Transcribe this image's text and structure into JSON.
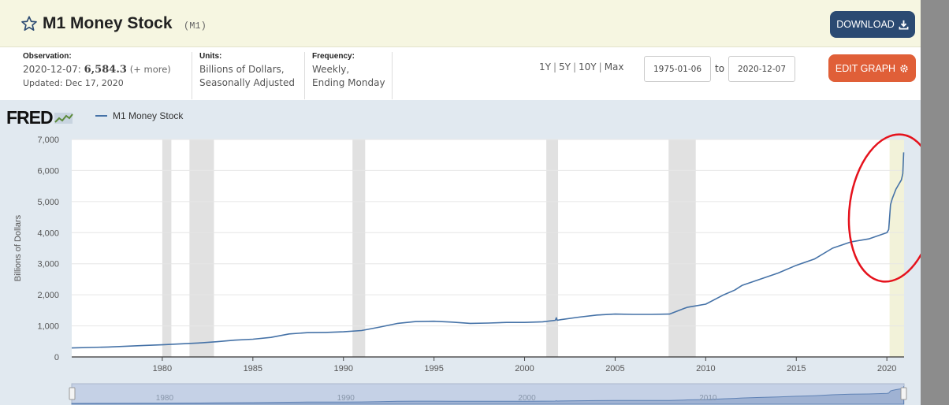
{
  "header": {
    "title": "M1 Money Stock",
    "series_id": "(M1)",
    "download_label": "DOWNLOAD"
  },
  "observation": {
    "label": "Observation:",
    "date": "2020-12-07:",
    "value": "6,584.3",
    "more": "(+ more)",
    "updated": "Updated: Dec 17, 2020"
  },
  "units": {
    "label": "Units:",
    "line1": "Billions of Dollars,",
    "line2": "Seasonally Adjusted"
  },
  "frequency": {
    "label": "Frequency:",
    "line1": "Weekly,",
    "line2": "Ending Monday"
  },
  "range": {
    "links": [
      "1Y",
      "5Y",
      "10Y",
      "Max"
    ],
    "start": "1975-01-06",
    "to_label": "to",
    "end": "2020-12-07"
  },
  "edit_graph_label": "EDIT GRAPH",
  "logo": "FRED",
  "colors": {
    "line": "#4572a7",
    "recession": "#e1e1e1",
    "highlight": "#f2f2d9",
    "annotation_ring": "#e5121c",
    "download_btn": "#2b4a72",
    "edit_btn": "#e05f38"
  },
  "chart_data": {
    "type": "line",
    "ylabel": "Billions of Dollars",
    "xlim": [
      1975.0,
      2020.95
    ],
    "ylim": [
      0,
      7000
    ],
    "yticks": [
      0,
      1000,
      2000,
      3000,
      4000,
      5000,
      6000,
      7000
    ],
    "ytick_labels": [
      "0",
      "1,000",
      "2,000",
      "3,000",
      "4,000",
      "5,000",
      "6,000",
      "7,000"
    ],
    "xticks": [
      1980,
      1985,
      1990,
      1995,
      2000,
      2005,
      2010,
      2015,
      2020
    ],
    "xtick_labels": [
      "1980",
      "1985",
      "1990",
      "1995",
      "2000",
      "2005",
      "2010",
      "2015",
      "2020"
    ],
    "grid": true,
    "legend": "top-left",
    "series": [
      {
        "name": "M1 Money Stock",
        "x": [
          1975.0,
          1977.0,
          1979.0,
          1980.0,
          1981.0,
          1982.0,
          1983.0,
          1984.0,
          1985.0,
          1986.0,
          1987.0,
          1988.0,
          1989.0,
          1990.0,
          1991.0,
          1992.0,
          1993.0,
          1994.0,
          1995.0,
          1996.0,
          1997.0,
          1998.0,
          1999.0,
          2000.0,
          2001.0,
          2001.7,
          2001.75,
          2001.8,
          2002.0,
          2003.0,
          2004.0,
          2005.0,
          2006.0,
          2007.0,
          2008.0,
          2008.8,
          2009.0,
          2010.0,
          2011.0,
          2011.6,
          2012.0,
          2013.0,
          2014.0,
          2015.0,
          2016.0,
          2017.0,
          2018.0,
          2019.0,
          2020.0,
          2020.1,
          2020.2,
          2020.3,
          2020.4,
          2020.5,
          2020.6,
          2020.7,
          2020.8,
          2020.88,
          2020.93
        ],
        "y": [
          290,
          320,
          370,
          390,
          420,
          450,
          490,
          540,
          570,
          630,
          740,
          780,
          790,
          810,
          850,
          960,
          1080,
          1140,
          1150,
          1120,
          1080,
          1090,
          1110,
          1110,
          1130,
          1180,
          1260,
          1180,
          1200,
          1280,
          1350,
          1380,
          1370,
          1370,
          1380,
          1560,
          1600,
          1700,
          2000,
          2150,
          2300,
          2500,
          2700,
          2950,
          3150,
          3500,
          3700,
          3800,
          4000,
          4100,
          4900,
          5100,
          5250,
          5400,
          5500,
          5600,
          5700,
          5900,
          6584
        ]
      }
    ],
    "recessions": [
      [
        1980.0,
        1980.5
      ],
      [
        1981.5,
        1982.85
      ],
      [
        1990.5,
        1991.2
      ],
      [
        2001.2,
        2001.85
      ],
      [
        2007.95,
        2009.45
      ]
    ],
    "highlight_range": [
      2020.15,
      2020.95
    ],
    "navigator": {
      "labels": [
        "1980",
        "1990",
        "2000",
        "2010"
      ],
      "label_years": [
        1980,
        1990,
        2000,
        2010
      ]
    }
  }
}
